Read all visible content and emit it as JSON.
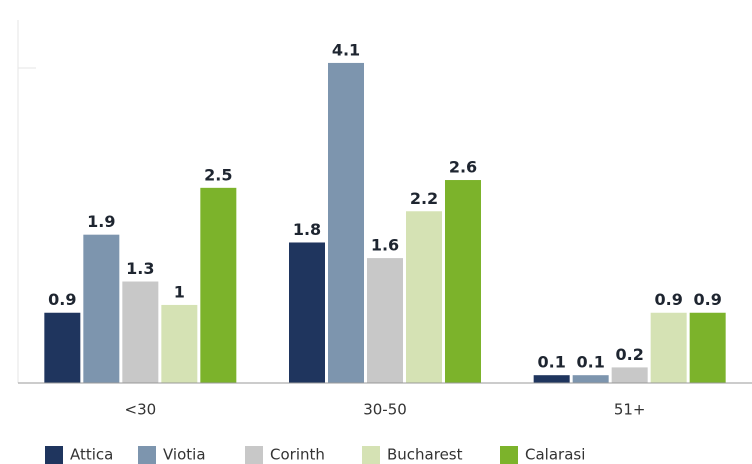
{
  "chart_data": {
    "type": "bar",
    "categories": [
      "<30",
      "30-50",
      "51+"
    ],
    "series": [
      {
        "name": "Attica",
        "color": "#1f355e",
        "values": [
          0.9,
          1.8,
          0.1
        ]
      },
      {
        "name": "Viotia",
        "color": "#7d95ae",
        "values": [
          1.9,
          4.1,
          0.1
        ]
      },
      {
        "name": "Corinth",
        "color": "#c8c8c8",
        "values": [
          1.3,
          1.6,
          0.2
        ]
      },
      {
        "name": "Bucharest",
        "color": "#d5e2b4",
        "values": [
          1.0,
          2.2,
          0.9
        ]
      },
      {
        "name": "Calarasi",
        "color": "#7cb32b",
        "values": [
          2.5,
          2.6,
          0.9
        ]
      }
    ],
    "ylim": [
      0,
      4.65
    ]
  }
}
